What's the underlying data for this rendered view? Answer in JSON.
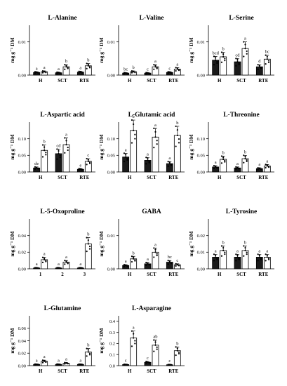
{
  "figure": {
    "panels_note": "",
    "chart_data": [
      {
        "type": "bar",
        "title": "L-Alanine",
        "ylabel": "mg g⁻¹ DM",
        "ylim": [
          0,
          0.015
        ],
        "yticks": [
          "0.00",
          "0.01"
        ],
        "ytick_values": [
          0,
          0.01
        ],
        "categories": [
          "H",
          "SCT",
          "RTE"
        ],
        "series": [
          {
            "name": "",
            "fill": "black",
            "values": [
              0.0008,
              0.0007,
              0.0009
            ],
            "sig": [
              "a",
              "a",
              "a"
            ]
          },
          {
            "name": "",
            "fill": "white",
            "values": [
              0.001,
              0.0025,
              0.0028
            ],
            "sig": [
              "a",
              "b",
              "b"
            ]
          }
        ]
      },
      {
        "type": "bar",
        "title": "L-Valine",
        "ylabel": "mg g⁻¹ DM",
        "ylim": [
          0,
          0.015
        ],
        "yticks": [
          "0.00",
          "0.01"
        ],
        "ytick_values": [
          0,
          0.01
        ],
        "categories": [
          "H",
          "SCT",
          "RTE"
        ],
        "series": [
          {
            "name": "",
            "fill": "black",
            "values": [
              0.0006,
              0.0006,
              0.0008
            ],
            "sig": [
              "bc",
              "c",
              "c"
            ]
          },
          {
            "name": "",
            "fill": "white",
            "values": [
              0.001,
              0.0025,
              0.0018
            ],
            "sig": [
              "b",
              "a",
              "a"
            ]
          }
        ]
      },
      {
        "type": "bar",
        "title": "L-Serine",
        "ylabel": "mg g⁻¹ DM",
        "ylim": [
          0,
          0.015
        ],
        "yticks": [
          "0.00",
          "0.01"
        ],
        "ytick_values": [
          0,
          0.01
        ],
        "categories": [
          "H",
          "SCT",
          "RTE"
        ],
        "series": [
          {
            "name": "",
            "fill": "black",
            "values": [
              0.0045,
              0.004,
              0.0025
            ],
            "sig": [
              "bcd",
              "cd",
              "d"
            ]
          },
          {
            "name": "",
            "fill": "white",
            "values": [
              0.0055,
              0.008,
              0.0048
            ],
            "sig": [
              "b",
              "a",
              "bc"
            ]
          }
        ]
      },
      {
        "type": "bar",
        "title": "L-Aspartic acid",
        "ylabel": "mg g⁻¹ DM",
        "ylim": [
          0,
          0.15
        ],
        "yticks": [
          "0.00",
          "0.05",
          "0.10"
        ],
        "ytick_values": [
          0,
          0.05,
          0.1
        ],
        "categories": [
          "H",
          "SCT",
          "RTE"
        ],
        "series": [
          {
            "name": "",
            "fill": "black",
            "values": [
              0.012,
              0.055,
              0.008
            ],
            "sig": [
              "de",
              "cd",
              "e"
            ]
          },
          {
            "name": "",
            "fill": "white",
            "values": [
              0.065,
              0.082,
              0.032
            ],
            "sig": [
              "b",
              "a",
              "c"
            ]
          }
        ]
      },
      {
        "type": "bar",
        "title": "L-Glutamic acid",
        "ylabel": "mg g⁻¹ DM",
        "ylim": [
          0,
          0.15
        ],
        "yticks": [
          "0.00",
          "0.05",
          "0.10"
        ],
        "ytick_values": [
          0,
          0.05,
          0.1
        ],
        "categories": [
          "H",
          "SCT",
          "RTE"
        ],
        "series": [
          {
            "name": "",
            "fill": "black",
            "values": [
              0.045,
              0.035,
              0.025
            ],
            "sig": [
              "a",
              "a",
              "a"
            ]
          },
          {
            "name": "",
            "fill": "white",
            "values": [
              0.125,
              0.105,
              0.11
            ],
            "sig": [
              "b",
              "a",
              "b"
            ]
          }
        ]
      },
      {
        "type": "bar",
        "title": "L-Threonine",
        "ylabel": "mg g⁻¹ DM",
        "ylim": [
          0,
          0.15
        ],
        "yticks": [
          "0.00",
          "0.05",
          "0.10"
        ],
        "ytick_values": [
          0,
          0.05,
          0.1
        ],
        "categories": [
          "H",
          "SCT",
          "RTE"
        ],
        "series": [
          {
            "name": "",
            "fill": "black",
            "values": [
              0.015,
              0.012,
              0.01
            ],
            "sig": [
              "a",
              "a",
              "a"
            ]
          },
          {
            "name": "",
            "fill": "white",
            "values": [
              0.038,
              0.04,
              0.018
            ],
            "sig": [
              "b",
              "b",
              "a"
            ]
          }
        ]
      },
      {
        "type": "bar",
        "title": "L-5-Oxoproline",
        "ylabel": "mg g⁻¹ DM",
        "ylim": [
          0,
          0.06
        ],
        "yticks": [
          "0.00",
          "0.02",
          "0.04"
        ],
        "ytick_values": [
          0,
          0.02,
          0.04
        ],
        "categories": [
          "1",
          "2",
          "3"
        ],
        "series": [
          {
            "name": "",
            "fill": "black",
            "values": [
              0.001,
              0.001,
              0.001
            ],
            "sig": [
              "a",
              "a",
              "a"
            ]
          },
          {
            "name": "",
            "fill": "white",
            "values": [
              0.011,
              0.008,
              0.03
            ],
            "sig": [
              "a",
              "a",
              "b"
            ]
          }
        ]
      },
      {
        "type": "bar",
        "title": "GABA",
        "ylabel": "mg g⁻¹ DM",
        "ylim": [
          0,
          0.015
        ],
        "yticks": [
          "0.00",
          "0.01"
        ],
        "ytick_values": [
          0,
          0.01
        ],
        "categories": [
          "H",
          "SCT",
          "RTE"
        ],
        "series": [
          {
            "name": "",
            "fill": "black",
            "values": [
              0.001,
              0.0015,
              0.002
            ],
            "sig": [
              "a",
              "a",
              "bc"
            ]
          },
          {
            "name": "",
            "fill": "white",
            "values": [
              0.003,
              0.005,
              0.0012
            ],
            "sig": [
              "b",
              "a",
              "c"
            ]
          }
        ]
      },
      {
        "type": "bar",
        "title": "L-Tyrosine",
        "ylabel": "mg g⁻¹ DM",
        "ylim": [
          0,
          0.03
        ],
        "yticks": [
          "0.00",
          "0.01",
          "0.02"
        ],
        "ytick_values": [
          0,
          0.01,
          0.02
        ],
        "categories": [
          "H",
          "SCT",
          "RTE"
        ],
        "series": [
          {
            "name": "",
            "fill": "black",
            "values": [
              0.007,
              0.007,
              0.007
            ],
            "sig": [
              "a",
              "a",
              "a"
            ]
          },
          {
            "name": "",
            "fill": "white",
            "values": [
              0.011,
              0.011,
              0.007
            ],
            "sig": [
              "b",
              "b",
              "a"
            ]
          }
        ]
      },
      {
        "type": "bar",
        "title": "L-Glutamine",
        "ylabel": "mg g⁻¹ DM",
        "ylim": [
          0,
          0.08
        ],
        "yticks": [
          "0.00",
          "0.02",
          "0.04",
          "0.06"
        ],
        "ytick_values": [
          0,
          0.02,
          0.04,
          0.06
        ],
        "categories": [
          "H",
          "SCT",
          "RTE"
        ],
        "series": [
          {
            "name": "",
            "fill": "black",
            "values": [
              0.002,
              0.002,
              0.002
            ],
            "sig": [
              "a",
              "a",
              "a"
            ]
          },
          {
            "name": "",
            "fill": "white",
            "values": [
              0.007,
              0.004,
              0.022
            ],
            "sig": [
              "a",
              "a",
              "b"
            ]
          }
        ]
      },
      {
        "type": "bar",
        "title": "L-Asparagine",
        "ylabel": "mg g⁻¹ DM",
        "ylim": [
          0,
          0.45
        ],
        "yticks": [
          "0.0",
          "0.1",
          "0.2",
          "0.3",
          "0.4"
        ],
        "ytick_values": [
          0,
          0.1,
          0.2,
          0.3,
          0.4
        ],
        "categories": [
          "H",
          "SCT",
          "RTE"
        ],
        "series": [
          {
            "name": "",
            "fill": "black",
            "values": [
              0.01,
              0.03,
              0.008
            ],
            "sig": [
              "c",
              "c",
              "c"
            ]
          },
          {
            "name": "",
            "fill": "white",
            "values": [
              0.25,
              0.185,
              0.135
            ],
            "sig": [
              "a",
              "ab",
              "b"
            ]
          }
        ]
      }
    ]
  }
}
